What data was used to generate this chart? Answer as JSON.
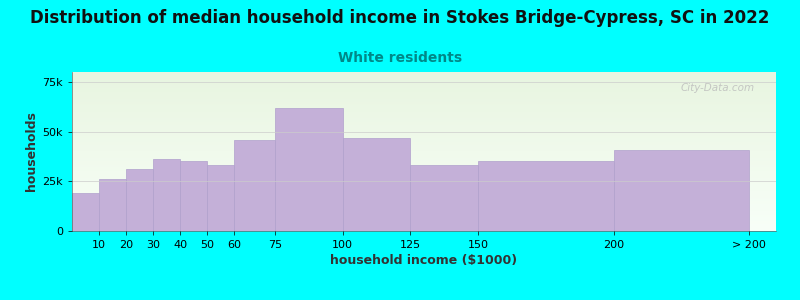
{
  "title": "Distribution of median household income in Stokes Bridge-Cypress, SC in 2022",
  "subtitle": "White residents",
  "xlabel": "household income ($1000)",
  "ylabel": "households",
  "background_color": "#00FFFF",
  "plot_bg_gradient_top": "#e8f5e0",
  "plot_bg_gradient_bottom": "#f8fff8",
  "bar_color": "#c4b0d8",
  "bar_edge_color": "#b0a0cc",
  "bin_edges": [
    0,
    10,
    20,
    30,
    40,
    50,
    60,
    75,
    100,
    125,
    150,
    200,
    250
  ],
  "bin_labels": [
    "10",
    "20",
    "30",
    "40",
    "50",
    "60",
    "75",
    "100",
    "125",
    "150",
    "200",
    "> 200"
  ],
  "values": [
    19000,
    26000,
    31000,
    36000,
    35000,
    33000,
    46000,
    62000,
    47000,
    33000,
    35000,
    41000
  ],
  "xtick_positions": [
    10,
    20,
    30,
    40,
    50,
    60,
    75,
    100,
    125,
    150,
    200,
    250
  ],
  "xtick_labels": [
    "10",
    "20",
    "30",
    "40",
    "50",
    "60",
    "75",
    "100",
    "125",
    "150",
    "200",
    "> 200"
  ],
  "ylim": [
    0,
    80000
  ],
  "xlim": [
    0,
    260
  ],
  "yticks": [
    0,
    25000,
    50000,
    75000
  ],
  "title_fontsize": 12,
  "subtitle_fontsize": 10,
  "subtitle_color": "#008888",
  "axis_label_fontsize": 9,
  "tick_fontsize": 8,
  "title_color": "#111111",
  "watermark": "City-Data.com"
}
